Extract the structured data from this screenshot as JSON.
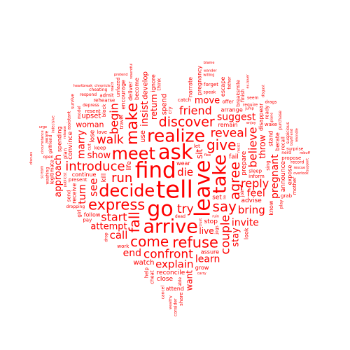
{
  "cloud": {
    "color": "#ff0000",
    "background": "#ffffff",
    "shape": "heart",
    "words": [
      {
        "text": "tell",
        "weight": 34
      },
      {
        "text": "find",
        "weight": 31
      },
      {
        "text": "leave",
        "weight": 30
      },
      {
        "text": "go",
        "weight": 30
      },
      {
        "text": "ask",
        "weight": 29
      },
      {
        "text": "arrive",
        "weight": 27
      },
      {
        "text": "take",
        "weight": 26
      },
      {
        "text": "realize",
        "weight": 25
      },
      {
        "text": "decide",
        "weight": 24
      },
      {
        "text": "meet",
        "weight": 24
      },
      {
        "text": "make",
        "weight": 22
      },
      {
        "text": "refuse",
        "weight": 21
      },
      {
        "text": "express",
        "weight": 21
      },
      {
        "text": "give",
        "weight": 20
      },
      {
        "text": "fall",
        "weight": 20
      },
      {
        "text": "say",
        "weight": 20
      },
      {
        "text": "come",
        "weight": 20
      },
      {
        "text": "discover",
        "weight": 19
      },
      {
        "text": "agree",
        "weight": 19
      },
      {
        "text": "run",
        "weight": 18
      },
      {
        "text": "introduce",
        "weight": 18
      },
      {
        "text": "confront",
        "weight": 17
      },
      {
        "text": "couple",
        "weight": 17
      },
      {
        "text": "walk",
        "weight": 17
      },
      {
        "text": "reveal",
        "weight": 17
      },
      {
        "text": "try",
        "weight": 17
      },
      {
        "text": "begin",
        "weight": 16
      },
      {
        "text": "friend",
        "weight": 16
      },
      {
        "text": "start",
        "weight": 16
      },
      {
        "text": "reply",
        "weight": 16
      },
      {
        "text": "believe",
        "weight": 16
      },
      {
        "text": "bring",
        "weight": 15
      },
      {
        "text": "explain",
        "weight": 15
      },
      {
        "text": "call",
        "weight": 15
      },
      {
        "text": "see",
        "weight": 15
      },
      {
        "text": "die",
        "weight": 15
      },
      {
        "text": "invite",
        "weight": 14
      },
      {
        "text": "feel",
        "weight": 14
      },
      {
        "text": "pregnant",
        "weight": 14
      },
      {
        "text": "learn",
        "weight": 14
      },
      {
        "text": "suggest",
        "weight": 14
      },
      {
        "text": "insist",
        "weight": 14
      },
      {
        "text": "turn",
        "weight": 14
      },
      {
        "text": "end",
        "weight": 14
      },
      {
        "text": "marry",
        "weight": 14
      },
      {
        "text": "attempt",
        "weight": 13
      },
      {
        "text": "stay",
        "weight": 13
      },
      {
        "text": "show",
        "weight": 13
      },
      {
        "text": "move",
        "weight": 13
      },
      {
        "text": "approach",
        "weight": 13
      },
      {
        "text": "throw",
        "weight": 12
      },
      {
        "text": "live",
        "weight": 12
      },
      {
        "text": "return",
        "weight": 12
      },
      {
        "text": "want",
        "weight": 12
      },
      {
        "text": "sit",
        "weight": 12
      },
      {
        "text": "woman",
        "weight": 11
      },
      {
        "text": "upset",
        "weight": 10
      },
      {
        "text": "use",
        "weight": 10
      },
      {
        "text": "spend",
        "weight": 10
      },
      {
        "text": "develop",
        "weight": 10
      },
      {
        "text": "watch",
        "weight": 10
      },
      {
        "text": "reconcile",
        "weight": 9
      },
      {
        "text": "life",
        "weight": 9
      },
      {
        "text": "prepare",
        "weight": 9
      },
      {
        "text": "stop",
        "weight": 9
      },
      {
        "text": "announce",
        "weight": 9
      },
      {
        "text": "lose",
        "weight": 9
      },
      {
        "text": "kill",
        "weight": 9
      },
      {
        "text": "fail",
        "weight": 9
      },
      {
        "text": "advise",
        "weight": 9
      },
      {
        "text": "convince",
        "weight": 9
      },
      {
        "text": "set",
        "weight": 9
      },
      {
        "text": "close",
        "weight": 9
      },
      {
        "text": "follow",
        "weight": 8
      },
      {
        "text": "look",
        "weight": 8
      },
      {
        "text": "grow",
        "weight": 8
      },
      {
        "text": "wear",
        "weight": 8
      },
      {
        "text": "know",
        "weight": 8
      },
      {
        "text": "stand",
        "weight": 8
      },
      {
        "text": "assure",
        "weight": 8
      },
      {
        "text": "arrange",
        "weight": 8
      },
      {
        "text": "pregnancy",
        "weight": 8
      },
      {
        "text": "expose",
        "weight": 8
      },
      {
        "text": "escape",
        "weight": 8
      },
      {
        "text": "receive",
        "weight": 8
      },
      {
        "text": "berate",
        "weight": 8
      },
      {
        "text": "encourage",
        "weight": 8
      },
      {
        "text": "ignore",
        "weight": 8
      },
      {
        "text": "continue",
        "weight": 8
      },
      {
        "text": "attend",
        "weight": 8
      },
      {
        "text": "deliver",
        "weight": 8
      },
      {
        "text": "remain",
        "weight": 8
      },
      {
        "text": "become",
        "weight": 8
      },
      {
        "text": "spending",
        "weight": 8
      },
      {
        "text": "narrate",
        "weight": 8
      },
      {
        "text": "disappear",
        "weight": 8
      },
      {
        "text": "inform",
        "weight": 7
      },
      {
        "text": "keep",
        "weight": 7
      },
      {
        "text": "send",
        "weight": 7
      },
      {
        "text": "offer",
        "weight": 7
      },
      {
        "text": "rehearse",
        "weight": 7
      },
      {
        "text": "cry",
        "weight": 7
      },
      {
        "text": "travel",
        "weight": 7
      },
      {
        "text": "catch",
        "weight": 7
      },
      {
        "text": "sleep",
        "weight": 7
      },
      {
        "text": "think",
        "weight": 7
      },
      {
        "text": "mother",
        "weight": 7
      },
      {
        "text": "present",
        "weight": 7
      },
      {
        "text": "cheat",
        "weight": 7
      },
      {
        "text": "work",
        "weight": 7
      },
      {
        "text": "block",
        "weight": 7
      },
      {
        "text": "help",
        "weight": 7
      },
      {
        "text": "love",
        "weight": 7
      },
      {
        "text": "let",
        "weight": 7
      },
      {
        "text": "recall",
        "weight": 7
      },
      {
        "text": "propose",
        "weight": 7
      },
      {
        "text": "admit",
        "weight": 7
      },
      {
        "text": "breaksmile",
        "weight": 7
      },
      {
        "text": "share",
        "weight": 7
      },
      {
        "text": "grab",
        "weight": 7
      },
      {
        "text": "ready",
        "weight": 7
      },
      {
        "text": "plan",
        "weight": 7
      },
      {
        "text": "sing",
        "weight": 7
      },
      {
        "text": "wake",
        "weight": 7
      },
      {
        "text": "resent",
        "weight": 7
      },
      {
        "text": "unfazed",
        "weight": 7
      },
      {
        "text": "girl",
        "weight": 7
      },
      {
        "text": "pay",
        "weight": 7
      },
      {
        "text": "forget",
        "weight": 7
      },
      {
        "text": "finish",
        "weight": 7
      },
      {
        "text": "legitimate",
        "weight": 7
      },
      {
        "text": "assistant",
        "weight": 6
      },
      {
        "text": "surprise",
        "weight": 6
      },
      {
        "text": "cheating",
        "weight": 6
      },
      {
        "text": "consider",
        "weight": 6
      },
      {
        "text": "dead",
        "weight": 6
      },
      {
        "text": "dropping",
        "weight": 6
      },
      {
        "text": "open",
        "weight": 6
      },
      {
        "text": "join",
        "weight": 6
      },
      {
        "text": "depress",
        "weight": 6
      },
      {
        "text": "seem",
        "weight": 6
      },
      {
        "text": "girlfriend",
        "weight": 6
      },
      {
        "text": "aware",
        "weight": 6
      },
      {
        "text": "record",
        "weight": 6
      },
      {
        "text": "speak",
        "weight": 6
      },
      {
        "text": "washing",
        "weight": 6
      },
      {
        "text": "model",
        "weight": 6
      },
      {
        "text": "survive",
        "weight": 6
      },
      {
        "text": "purchase",
        "weight": 6
      },
      {
        "text": "require",
        "weight": 6
      },
      {
        "text": "cancel",
        "weight": 6
      },
      {
        "text": "respond",
        "weight": 6
      },
      {
        "text": "play",
        "weight": 6
      },
      {
        "text": "nerd",
        "weight": 6
      },
      {
        "text": "cut",
        "weight": 6
      },
      {
        "text": "suspicious",
        "weight": 6
      },
      {
        "text": "father",
        "weight": 6
      },
      {
        "text": "drags",
        "weight": 6
      },
      {
        "text": "jogs",
        "weight": 6
      },
      {
        "text": "able",
        "weight": 6
      },
      {
        "text": "drop",
        "weight": 6
      },
      {
        "text": "pretend",
        "weight": 5
      },
      {
        "text": "piano",
        "weight": 5
      },
      {
        "text": "rescue",
        "weight": 5
      },
      {
        "text": "overlook",
        "weight": 5
      },
      {
        "text": "reach",
        "weight": 5
      },
      {
        "text": "lie",
        "weight": 5
      },
      {
        "text": "ruin",
        "weight": 5
      },
      {
        "text": "carry",
        "weight": 5
      },
      {
        "text": "willing",
        "weight": 5
      },
      {
        "text": "boyfriend",
        "weight": 5
      },
      {
        "text": "enjoy",
        "weight": 5
      },
      {
        "text": "chronicle",
        "weight": 5
      },
      {
        "text": "wander",
        "weight": 5
      },
      {
        "text": "indecisive",
        "weight": 5
      },
      {
        "text": "rekindle",
        "weight": 5
      },
      {
        "text": "flee",
        "weight": 5
      },
      {
        "text": "circumstance",
        "weight": 5
      },
      {
        "text": "support",
        "weight": 5
      },
      {
        "text": "trust",
        "weight": 5
      },
      {
        "text": "resist",
        "weight": 5
      },
      {
        "text": "wealthy",
        "weight": 5
      },
      {
        "text": "ex-lover",
        "weight": 5
      },
      {
        "text": "release",
        "weight": 5
      },
      {
        "text": "urge",
        "weight": 5
      },
      {
        "text": "rebuff",
        "weight": 5
      },
      {
        "text": "discuss",
        "weight": 5
      },
      {
        "text": "blame",
        "weight": 5
      },
      {
        "text": "scream",
        "weight": 5
      },
      {
        "text": "jump",
        "weight": 5
      },
      {
        "text": "publicist",
        "weight": 5
      },
      {
        "text": "resentful",
        "weight": 5
      },
      {
        "text": "disgust",
        "weight": 5
      },
      {
        "text": "heartbreak",
        "weight": 5
      }
    ]
  }
}
